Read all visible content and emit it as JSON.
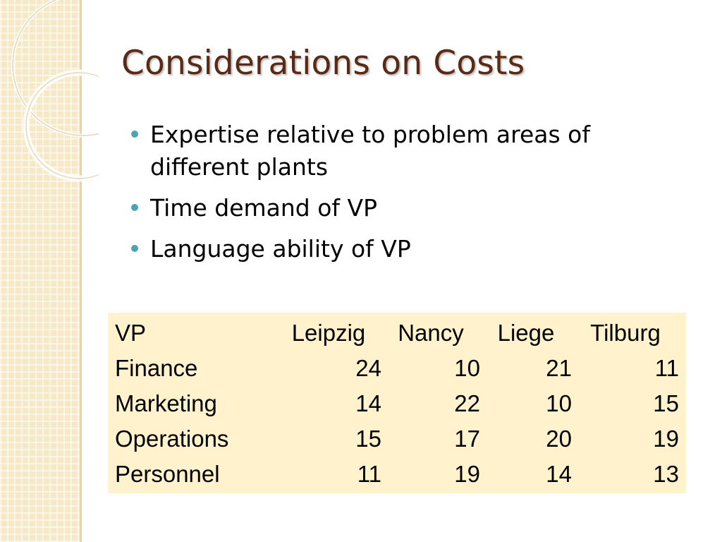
{
  "slide": {
    "title": "Considerations on Costs",
    "bullets": [
      "Expertise relative to problem areas of different plants",
      "Time demand of VP",
      "Language ability of VP"
    ]
  },
  "table": {
    "headers": [
      "VP",
      "Leipzig",
      "Nancy",
      "Liege",
      "Tilburg"
    ],
    "rows": [
      [
        "Finance",
        "24",
        "10",
        "21",
        "11"
      ],
      [
        "Marketing",
        "14",
        "22",
        "10",
        "15"
      ],
      [
        "Operations",
        "15",
        "17",
        "20",
        "19"
      ],
      [
        "Personnel",
        "11",
        "19",
        "14",
        "13"
      ]
    ]
  },
  "colors": {
    "title": "#5b2a14",
    "bullet": "#4ba3b6",
    "table_background": "#fff2cc",
    "strip_background": "#f6e9c8"
  }
}
